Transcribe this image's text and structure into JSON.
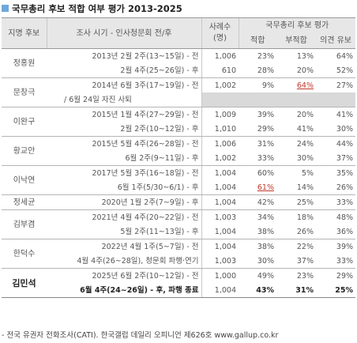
{
  "title": "국무총리 후보 적합 여부 평가 2013-2025",
  "header": {
    "name": "지명 후보",
    "survey": "조사 시기 - 인사청문회 전/후",
    "sample_line1": "사례수",
    "sample_line2": "(명)",
    "group": "국무총리 후보 평가",
    "suitable": "적합",
    "unsuitable": "부적합",
    "reserved": "의견 유보"
  },
  "rows": [
    {
      "name": "정홍원",
      "survey": "2013년 2월 2주(13~15일) - 전",
      "n": "1,006",
      "a": "23%",
      "b": "13%",
      "c": "64%"
    },
    {
      "name": "",
      "survey": "2월 4주(25~26일) - 후",
      "n": "610",
      "a": "28%",
      "b": "20%",
      "c": "52%"
    },
    {
      "name": "문창극",
      "survey": "2014년 6월 3주(17~19일) - 전",
      "n": "1,002",
      "a": "9%",
      "b": "64%",
      "c": "27%"
    },
    {
      "name": "",
      "survey": "/ 6월 24일 자진 사퇴",
      "n": "",
      "a": "",
      "b": "",
      "c": ""
    },
    {
      "name": "이완구",
      "survey": "2015년 1월 4주(27~29일) - 전",
      "n": "1,009",
      "a": "39%",
      "b": "20%",
      "c": "41%"
    },
    {
      "name": "",
      "survey": "2월 2주(10~12일) - 후",
      "n": "1,010",
      "a": "29%",
      "b": "41%",
      "c": "30%"
    },
    {
      "name": "황교안",
      "survey": "2015년 5월 4주(26~28일) - 전",
      "n": "1,006",
      "a": "31%",
      "b": "24%",
      "c": "44%"
    },
    {
      "name": "",
      "survey": "6월 2주(9~11일) - 후",
      "n": "1,002",
      "a": "33%",
      "b": "30%",
      "c": "37%"
    },
    {
      "name": "이낙연",
      "survey": "2017년 5월 3주(16~18일) - 전",
      "n": "1,004",
      "a": "60%",
      "b": "5%",
      "c": "35%"
    },
    {
      "name": "",
      "survey": "6월 1주(5/30~6/1) - 후",
      "n": "1,004",
      "a": "61%",
      "b": "14%",
      "c": "26%"
    },
    {
      "name": "정세균",
      "survey": "2020년 1월 2주(7~9일) - 후",
      "n": "1,004",
      "a": "42%",
      "b": "25%",
      "c": "33%"
    },
    {
      "name": "김부겸",
      "survey": "2021년 4월 4주(20~22일) - 전",
      "n": "1,003",
      "a": "34%",
      "b": "18%",
      "c": "48%"
    },
    {
      "name": "",
      "survey": "5월 2주(11~13일) - 후",
      "n": "1,004",
      "a": "38%",
      "b": "26%",
      "c": "36%"
    },
    {
      "name": "한덕수",
      "survey": "2022년 4월 1주(5~7일) - 전",
      "n": "1,004",
      "a": "38%",
      "b": "22%",
      "c": "39%"
    },
    {
      "name": "",
      "survey": "4월 4주(26~28일), 청문회 파행·연기",
      "n": "1,003",
      "a": "30%",
      "b": "37%",
      "c": "33%"
    },
    {
      "name": "김민석",
      "survey": "2025년 6월 2주(10~12일) - 전",
      "n": "1,000",
      "a": "49%",
      "b": "23%",
      "c": "29%"
    },
    {
      "name": "",
      "survey": "6월 4주(24~26일) - 후, 파행 종료",
      "n": "1,004",
      "a": "43%",
      "b": "31%",
      "c": "25%"
    }
  ],
  "source": "- 전국 유권자 전화조사(CATI). 한국갤럽 데일리 오피니언 제626호 www.gallup.co.kr",
  "colors": {
    "accent": "#6fa8dc",
    "highlight_red": "#c0392b",
    "header_bg": "#e7e7e7",
    "gray_cell": "#d9d9d9"
  }
}
